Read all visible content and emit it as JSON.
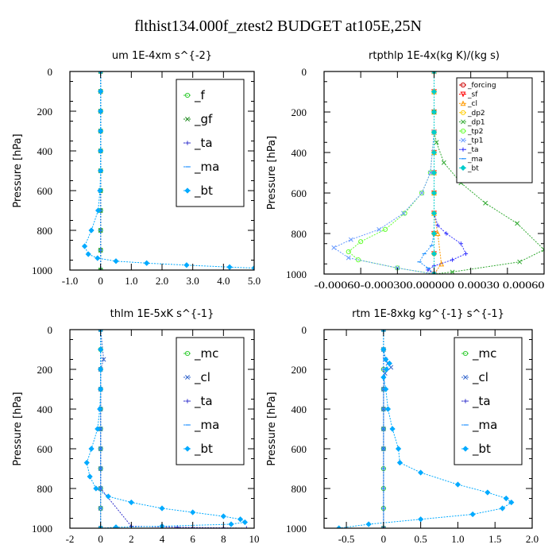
{
  "title": "flthist134.000f_ztest2  BUDGET at105E,25N",
  "chart_data": [
    {
      "type": "line",
      "title": "um  1E-4xm s^{-2}",
      "ylabel": "Pressure [hPa]",
      "xlim": [
        -1.0,
        5.0
      ],
      "ylim": [
        0,
        1000
      ],
      "y_inverted": true,
      "xticks": [
        "-1.0",
        "0",
        "1.0",
        "2.0",
        "3.0",
        "4.0",
        "5.0"
      ],
      "xtick_values": [
        -1,
        0,
        1,
        2,
        3,
        4,
        5
      ],
      "yticks": [
        "0",
        "200",
        "400",
        "600",
        "800",
        "1000"
      ],
      "legend_position": "top-right",
      "series": [
        {
          "name": "_f",
          "color": "#33cc33",
          "marker": "o",
          "x": [
            0,
            0,
            0,
            0,
            0,
            0,
            0,
            0,
            0,
            0,
            0
          ],
          "y": [
            0,
            100,
            200,
            300,
            400,
            500,
            600,
            700,
            800,
            900,
            1000
          ]
        },
        {
          "name": "_gf",
          "color": "#228b22",
          "marker": "x",
          "x": [
            0,
            0,
            0,
            0,
            0,
            0,
            0,
            0,
            0,
            0,
            0
          ],
          "y": [
            0,
            100,
            200,
            300,
            400,
            500,
            600,
            700,
            800,
            900,
            1000
          ]
        },
        {
          "name": "_ta",
          "color": "#3333cc",
          "marker": "+",
          "x": [
            0,
            0,
            0,
            0,
            0,
            0,
            0,
            0,
            0,
            0,
            0
          ],
          "y": [
            0,
            100,
            200,
            300,
            400,
            500,
            600,
            700,
            800,
            900,
            1000
          ]
        },
        {
          "name": "_ma",
          "color": "#1e90ff",
          "marker": "-",
          "x": [
            0,
            0,
            0,
            0,
            0,
            0,
            0,
            0,
            0,
            0,
            0
          ],
          "y": [
            0,
            100,
            200,
            300,
            400,
            500,
            600,
            700,
            800,
            900,
            1000
          ]
        },
        {
          "name": "_bt",
          "color": "#00aaff",
          "marker": "d",
          "x": [
            0,
            0,
            0,
            0,
            0,
            0,
            -0.02,
            -0.08,
            -0.3,
            -0.52,
            -0.4,
            -0.1,
            0.5,
            1.5,
            2.8,
            4.2,
            5.0
          ],
          "y": [
            0,
            100,
            200,
            300,
            400,
            500,
            600,
            700,
            800,
            880,
            920,
            940,
            955,
            965,
            975,
            985,
            990
          ]
        }
      ]
    },
    {
      "type": "line",
      "title": "rtpthlp  1E-4x(kg K)/(kg s)",
      "ylabel": "Pressure [hPa]",
      "xlim": [
        -0.0009,
        0.0009
      ],
      "ylim": [
        0,
        1000
      ],
      "y_inverted": true,
      "xticks": [
        "-0.00060",
        "-0.00030",
        "0.00000",
        "0.00030",
        "0.00060"
      ],
      "xtick_values": [
        -0.0006,
        -0.0003,
        0,
        0.0003,
        0.0006
      ],
      "xtick_text": "-0.00060-0.000300.000000 0.00030 0.00060",
      "yticks": [
        "0",
        "200",
        "400",
        "600",
        "800",
        "1000"
      ],
      "legend_position": "top-right",
      "series": [
        {
          "name": "_forcing",
          "color": "#cc0000",
          "marker": "o",
          "x": [
            0,
            0,
            0,
            0,
            0,
            0,
            0,
            0,
            0,
            0,
            0
          ],
          "y": [
            0,
            100,
            200,
            300,
            400,
            500,
            600,
            700,
            800,
            900,
            1000
          ]
        },
        {
          "name": "_sf",
          "color": "#ff0000",
          "marker": "v",
          "x": [
            0,
            0,
            0,
            0,
            0,
            0,
            0,
            0,
            0,
            0,
            0
          ],
          "y": [
            0,
            100,
            200,
            300,
            400,
            500,
            600,
            700,
            800,
            900,
            1000
          ]
        },
        {
          "name": "_cl",
          "color": "#ff9900",
          "marker": "^",
          "x": [
            0,
            0,
            0,
            0,
            0,
            0,
            0,
            0,
            3e-05,
            6e-05,
            0
          ],
          "y": [
            0,
            100,
            200,
            300,
            400,
            500,
            600,
            700,
            800,
            950,
            1000
          ]
        },
        {
          "name": "_dp2",
          "color": "#ffcc00",
          "marker": "o",
          "x": [
            0,
            0,
            0,
            0,
            0,
            0,
            0,
            0,
            0,
            0,
            0
          ],
          "y": [
            0,
            100,
            200,
            300,
            400,
            500,
            600,
            700,
            800,
            900,
            1000
          ]
        },
        {
          "name": "_dp1",
          "color": "#33aa33",
          "marker": "x",
          "x": [
            0,
            0,
            0,
            2e-05,
            8e-05,
            0.00022,
            0.00042,
            0.00068,
            0.0009,
            0.0007,
            0.00015,
            0
          ],
          "y": [
            0,
            200,
            300,
            350,
            450,
            550,
            650,
            750,
            880,
            940,
            990,
            1000
          ]
        },
        {
          "name": "_tp2",
          "color": "#66ff33",
          "marker": "o",
          "x": [
            0,
            0,
            -3e-05,
            -0.0001,
            -0.00024,
            -0.0004,
            -0.0006,
            -0.0007,
            -0.00062,
            -0.0003,
            0
          ],
          "y": [
            0,
            300,
            500,
            600,
            700,
            780,
            840,
            890,
            930,
            970,
            1000
          ]
        },
        {
          "name": "_tp1",
          "color": "#6699ff",
          "marker": "x",
          "x": [
            0,
            0,
            -3e-05,
            -0.0001,
            -0.00025,
            -0.00045,
            -0.00068,
            -0.00082,
            -0.0007,
            -0.0003,
            0
          ],
          "y": [
            0,
            300,
            500,
            600,
            700,
            780,
            830,
            870,
            920,
            970,
            1000
          ]
        },
        {
          "name": "_ta",
          "color": "#3333ff",
          "marker": "+",
          "x": [
            0,
            0,
            3e-05,
            0.0001,
            0.00022,
            0.00026,
            0.00015,
            0,
            -5e-05,
            0
          ],
          "y": [
            0,
            700,
            760,
            800,
            850,
            900,
            930,
            960,
            980,
            1000
          ]
        },
        {
          "name": "_ma",
          "color": "#1e90ff",
          "marker": "-",
          "x": [
            0,
            0,
            -2e-05,
            -8e-05,
            -0.00012,
            -5e-05,
            0
          ],
          "y": [
            0,
            800,
            860,
            900,
            940,
            970,
            1000
          ]
        },
        {
          "name": "_bt",
          "color": "#00cccc",
          "marker": "d",
          "x": [
            0,
            0,
            0,
            0,
            0,
            0,
            0,
            0,
            0,
            0,
            0
          ],
          "y": [
            0,
            100,
            200,
            300,
            400,
            500,
            600,
            700,
            800,
            900,
            1000
          ]
        }
      ]
    },
    {
      "type": "line",
      "title": "thlm  1E-5xK s^{-1}",
      "ylabel": "Pressure [hPa]",
      "xlim": [
        -2,
        10
      ],
      "ylim": [
        0,
        1000
      ],
      "y_inverted": true,
      "xticks": [
        "-2",
        "0",
        "2",
        "4",
        "6",
        "8",
        "10"
      ],
      "xtick_values": [
        -2,
        0,
        2,
        4,
        6,
        8,
        10
      ],
      "yticks": [
        "0",
        "200",
        "400",
        "600",
        "800",
        "1000"
      ],
      "legend_position": "top-right",
      "series": [
        {
          "name": "_mc",
          "color": "#33cc33",
          "marker": "o",
          "x": [
            0,
            0,
            0,
            0,
            0,
            0,
            0,
            0,
            0,
            0,
            0
          ],
          "y": [
            0,
            100,
            200,
            300,
            400,
            500,
            600,
            700,
            800,
            900,
            1000
          ]
        },
        {
          "name": "_cl",
          "color": "#3366cc",
          "marker": "x",
          "x": [
            0,
            0.2,
            0,
            0,
            0,
            0,
            0,
            0,
            0,
            0,
            0
          ],
          "y": [
            0,
            150,
            200,
            300,
            400,
            500,
            600,
            700,
            800,
            900,
            1000
          ]
        },
        {
          "name": "_ta",
          "color": "#3333cc",
          "marker": "+",
          "x": [
            0,
            0,
            0,
            0,
            0,
            0,
            0,
            0,
            0,
            2,
            5,
            8,
            9.5
          ],
          "y": [
            0,
            100,
            200,
            300,
            400,
            500,
            600,
            700,
            800,
            990,
            995,
            998,
            1000
          ]
        },
        {
          "name": "_ma",
          "color": "#1e90ff",
          "marker": "-",
          "x": [
            0,
            0,
            0,
            0,
            0,
            0,
            0,
            0,
            0,
            0,
            0
          ],
          "y": [
            0,
            100,
            200,
            300,
            400,
            500,
            600,
            700,
            800,
            900,
            1000
          ]
        },
        {
          "name": "_bt",
          "color": "#00aaff",
          "marker": "d",
          "x": [
            0,
            0,
            0,
            0,
            -0.05,
            -0.2,
            -0.6,
            -0.9,
            -0.7,
            -0.3,
            0.5,
            2,
            4,
            6,
            8,
            9.1,
            9.4,
            8.5,
            4,
            1,
            0
          ],
          "y": [
            0,
            100,
            200,
            300,
            400,
            500,
            600,
            670,
            740,
            800,
            840,
            870,
            900,
            920,
            940,
            955,
            970,
            980,
            990,
            995,
            1000
          ]
        }
      ]
    },
    {
      "type": "line",
      "title": "rtm  1E-8xkg kg^{-1} s^{-1}",
      "ylabel": "Pressure [hPa]",
      "xlim": [
        -0.8,
        2.0
      ],
      "ylim": [
        0,
        1000
      ],
      "y_inverted": true,
      "xticks": [
        "-0.5",
        "0",
        "0.5",
        "1.0",
        "1.5",
        "2.0"
      ],
      "xtick_values": [
        -0.5,
        0,
        0.5,
        1.0,
        1.5,
        2.0
      ],
      "yticks": [
        "0",
        "200",
        "400",
        "600",
        "800",
        "1000"
      ],
      "legend_position": "top-right",
      "series": [
        {
          "name": "_mc",
          "color": "#33cc33",
          "marker": "o",
          "x": [
            0,
            0,
            0,
            0,
            0,
            0,
            0,
            0,
            0,
            0,
            0
          ],
          "y": [
            0,
            100,
            200,
            300,
            400,
            500,
            600,
            700,
            800,
            900,
            1000
          ]
        },
        {
          "name": "_cl",
          "color": "#3366cc",
          "marker": "x",
          "x": [
            0,
            0,
            0.02,
            0.06,
            0.1,
            0.02,
            0,
            0,
            0,
            0,
            0
          ],
          "y": [
            0,
            100,
            150,
            170,
            190,
            220,
            300,
            400,
            500,
            600,
            1000
          ]
        },
        {
          "name": "_ta",
          "color": "#3333cc",
          "marker": "+",
          "x": [
            0,
            0,
            0,
            0,
            0,
            0,
            0,
            0,
            0,
            0,
            0
          ],
          "y": [
            0,
            100,
            200,
            300,
            400,
            500,
            600,
            700,
            800,
            900,
            1000
          ]
        },
        {
          "name": "_ma",
          "color": "#1e90ff",
          "marker": "-",
          "x": [
            0,
            0,
            0,
            0,
            0,
            0,
            0,
            0,
            0,
            0,
            0
          ],
          "y": [
            0,
            100,
            200,
            300,
            400,
            500,
            600,
            700,
            800,
            900,
            1000
          ]
        },
        {
          "name": "_bt",
          "color": "#00aaff",
          "marker": "d",
          "x": [
            0,
            0,
            0.03,
            0.08,
            0.04,
            0,
            0.03,
            0.06,
            0.12,
            0.2,
            0.22,
            0.5,
            1.0,
            1.4,
            1.65,
            1.72,
            1.6,
            1.2,
            0.5,
            -0.2,
            -0.6
          ],
          "y": [
            0,
            100,
            150,
            170,
            200,
            240,
            300,
            400,
            500,
            600,
            670,
            720,
            780,
            820,
            850,
            870,
            900,
            930,
            955,
            980,
            1000
          ]
        }
      ]
    }
  ]
}
